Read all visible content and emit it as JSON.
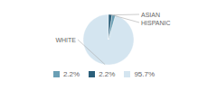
{
  "chart_data": {
    "type": "pie",
    "categories": [
      "WHITE",
      "ASIAN",
      "HISPANIC"
    ],
    "values": [
      95.7,
      2.2,
      2.2
    ],
    "value_labels": [
      "95.7%",
      "2.2%",
      "2.2%"
    ],
    "colors": [
      "#d4e5f0",
      "#6a9fb5",
      "#2b5f7a"
    ],
    "legend": "bottom"
  }
}
